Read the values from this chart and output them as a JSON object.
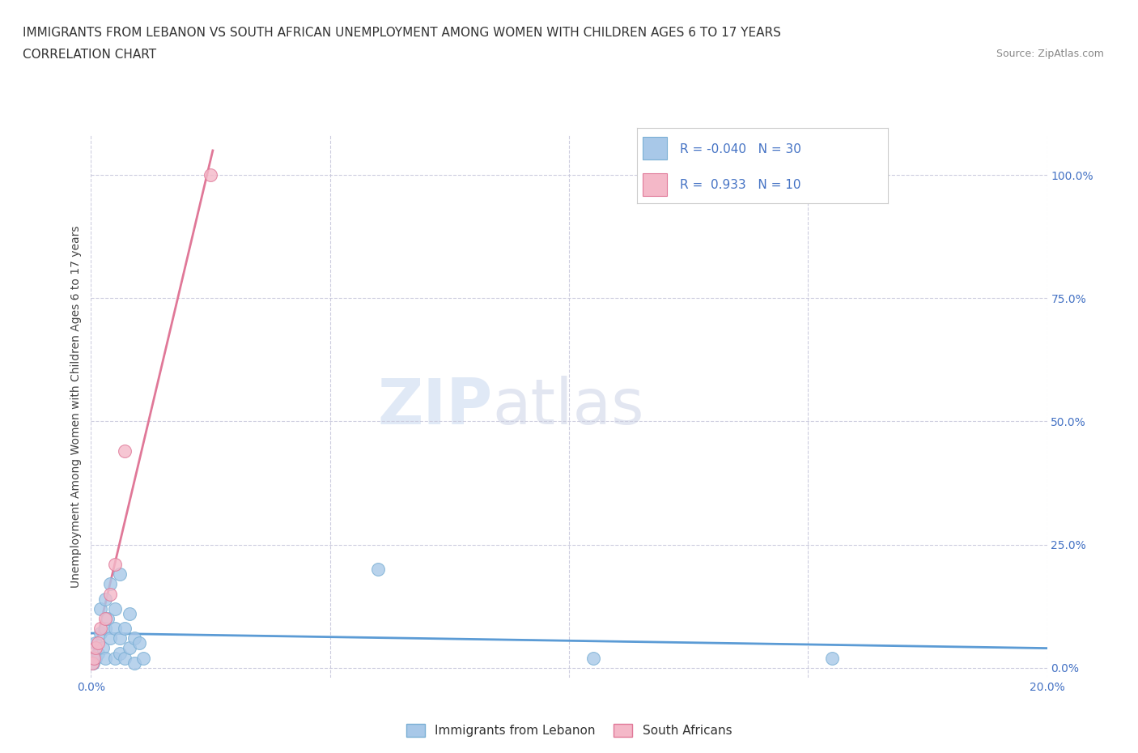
{
  "title_line1": "IMMIGRANTS FROM LEBANON VS SOUTH AFRICAN UNEMPLOYMENT AMONG WOMEN WITH CHILDREN AGES 6 TO 17 YEARS",
  "title_line2": "CORRELATION CHART",
  "source": "Source: ZipAtlas.com",
  "ylabel": "Unemployment Among Women with Children Ages 6 to 17 years",
  "xlim": [
    0.0,
    0.2
  ],
  "ylim": [
    -0.02,
    1.08
  ],
  "ytick_values": [
    0.0,
    0.25,
    0.5,
    0.75,
    1.0
  ],
  "xtick_values": [
    0.0,
    0.05,
    0.1,
    0.15,
    0.2
  ],
  "lebanon_color": "#a8c8e8",
  "lebanon_edge": "#7aafd4",
  "sa_color": "#f4b8c8",
  "sa_edge": "#e07898",
  "trendline_lebanon": "#5b9bd5",
  "trendline_sa": "#e07898",
  "legend_r_lebanon": "-0.040",
  "legend_n_lebanon": "30",
  "legend_r_sa": "0.933",
  "legend_n_sa": "10",
  "watermark_zip": "ZIP",
  "watermark_atlas": "atlas",
  "lebanon_x": [
    0.0005,
    0.001,
    0.001,
    0.0015,
    0.002,
    0.002,
    0.0025,
    0.003,
    0.003,
    0.003,
    0.0035,
    0.004,
    0.004,
    0.005,
    0.005,
    0.005,
    0.006,
    0.006,
    0.006,
    0.007,
    0.007,
    0.008,
    0.008,
    0.009,
    0.009,
    0.01,
    0.011,
    0.06,
    0.105,
    0.155
  ],
  "lebanon_y": [
    0.01,
    0.02,
    0.05,
    0.03,
    0.07,
    0.12,
    0.04,
    0.08,
    0.14,
    0.02,
    0.1,
    0.06,
    0.17,
    0.12,
    0.02,
    0.08,
    0.03,
    0.06,
    0.19,
    0.02,
    0.08,
    0.04,
    0.11,
    0.01,
    0.06,
    0.05,
    0.02,
    0.2,
    0.02,
    0.02
  ],
  "sa_x": [
    0.0003,
    0.0006,
    0.001,
    0.0015,
    0.002,
    0.003,
    0.004,
    0.005,
    0.007,
    0.025
  ],
  "sa_y": [
    0.01,
    0.02,
    0.04,
    0.05,
    0.08,
    0.1,
    0.15,
    0.21,
    0.44,
    1.0
  ],
  "background_color": "#ffffff",
  "grid_color": "#c8c8dc",
  "title_fontsize": 11,
  "subtitle_fontsize": 11,
  "source_fontsize": 9,
  "axis_label_fontsize": 10,
  "tick_fontsize": 10,
  "legend_fontsize": 11
}
